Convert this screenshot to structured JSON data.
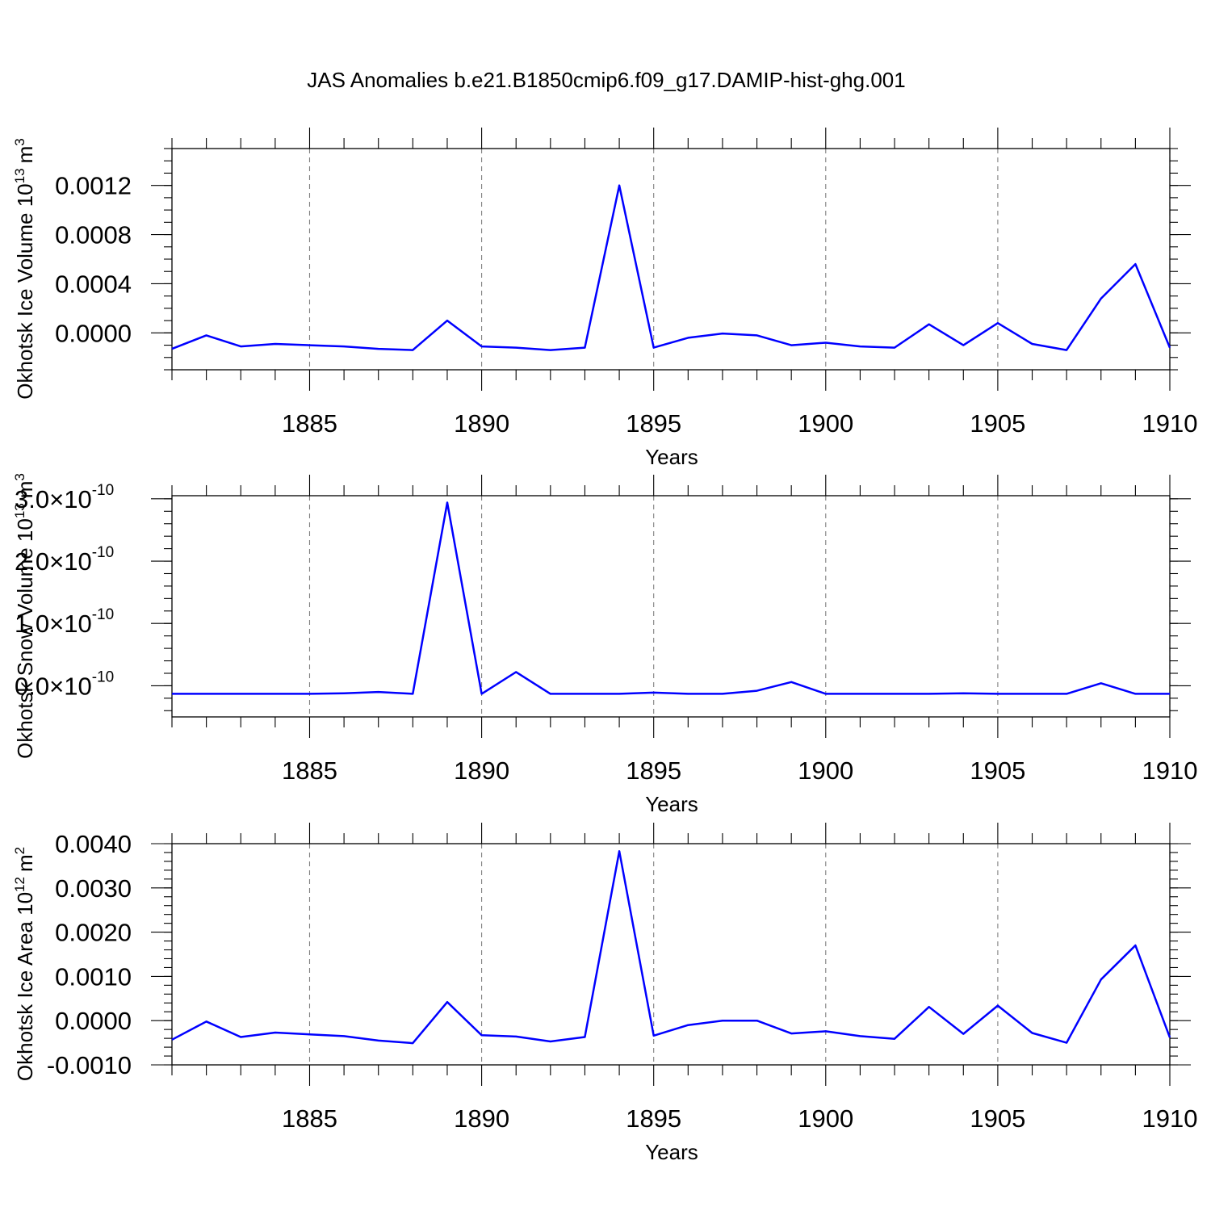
{
  "figure_title": "JAS Anomalies b.e21.B1850cmip6.f09_g17.DAMIP-hist-ghg.001",
  "line_color": "#0000ff",
  "chart_data": [
    {
      "type": "line",
      "xlabel": "Years",
      "ylabel_main": "Okhotsk Ice Volume 10",
      "ylabel_exp": "13",
      "ylabel_unit": "m",
      "ylabel_unit_exp": "3",
      "xlim": [
        1881,
        1910
      ],
      "ylim": [
        -0.0003,
        0.0015
      ],
      "x_ticks": [
        1885,
        1890,
        1895,
        1900,
        1905,
        1910
      ],
      "y_ticks": [
        {
          "value": 0.0,
          "label": "0.0000"
        },
        {
          "value": 0.0004,
          "label": "0.0004"
        },
        {
          "value": 0.0008,
          "label": "0.0008"
        },
        {
          "value": 0.0012,
          "label": "0.0012"
        }
      ],
      "y_minor_step": 0.0001,
      "x": [
        1881,
        1882,
        1883,
        1884,
        1885,
        1886,
        1887,
        1888,
        1889,
        1890,
        1891,
        1892,
        1893,
        1894,
        1895,
        1896,
        1897,
        1898,
        1899,
        1900,
        1901,
        1902,
        1903,
        1904,
        1905,
        1906,
        1907,
        1908,
        1909,
        1910
      ],
      "values": [
        -0.00013,
        -2e-05,
        -0.00011,
        -9e-05,
        -0.0001,
        -0.00011,
        -0.00013,
        -0.00014,
        0.0001,
        -0.00011,
        -0.00012,
        -0.00014,
        -0.00012,
        0.0012,
        -0.00012,
        -4e-05,
        -5e-06,
        -2e-05,
        -0.0001,
        -8e-05,
        -0.00011,
        -0.00012,
        7e-05,
        -0.0001,
        8e-05,
        -9e-05,
        -0.00014,
        0.00028,
        0.00056,
        -0.00012
      ]
    },
    {
      "type": "line",
      "xlabel": "Years",
      "ylabel_main": "Okhotsk Snow Volume 10",
      "ylabel_exp": "13",
      "ylabel_unit": "m",
      "ylabel_unit_exp": "3",
      "xlim": [
        1881,
        1910
      ],
      "ylim": [
        -5e-11,
        3.05e-10
      ],
      "x_ticks": [
        1885,
        1890,
        1895,
        1900,
        1905,
        1910
      ],
      "y_ticks": [
        {
          "value": 0.0,
          "mantissa": "0.0",
          "times": "×",
          "base": "10",
          "exponent": "-10"
        },
        {
          "value": 1e-10,
          "mantissa": "1.0",
          "times": "×",
          "base": "10",
          "exponent": "-10"
        },
        {
          "value": 2e-10,
          "mantissa": "2.0",
          "times": "×",
          "base": "10",
          "exponent": "-10"
        },
        {
          "value": 3e-10,
          "mantissa": "3.0",
          "times": "×",
          "base": "10",
          "exponent": "-10"
        }
      ],
      "y_minor_step": 2e-11,
      "x": [
        1881,
        1882,
        1883,
        1884,
        1885,
        1886,
        1887,
        1888,
        1889,
        1890,
        1891,
        1892,
        1893,
        1894,
        1895,
        1896,
        1897,
        1898,
        1899,
        1900,
        1901,
        1902,
        1903,
        1904,
        1905,
        1906,
        1907,
        1908,
        1909,
        1910
      ],
      "values": [
        -1.3e-11,
        -1.3e-11,
        -1.3e-11,
        -1.3e-11,
        -1.3e-11,
        -1.2e-11,
        -1e-11,
        -1.3e-11,
        2.94e-10,
        -1.3e-11,
        2.2e-11,
        -1.3e-11,
        -1.3e-11,
        -1.3e-11,
        -1.1e-11,
        -1.3e-11,
        -1.3e-11,
        -8e-12,
        6e-12,
        -1.3e-11,
        -1.3e-11,
        -1.3e-11,
        -1.3e-11,
        -1.2e-11,
        -1.3e-11,
        -1.3e-11,
        -1.3e-11,
        4e-12,
        -1.3e-11,
        -1.3e-11
      ]
    },
    {
      "type": "line",
      "xlabel": "Years",
      "ylabel_main": "Okhotsk Ice Area 10",
      "ylabel_exp": "12",
      "ylabel_unit": "m",
      "ylabel_unit_exp": "2",
      "xlim": [
        1881,
        1910
      ],
      "ylim": [
        -0.001,
        0.004
      ],
      "x_ticks": [
        1885,
        1890,
        1895,
        1900,
        1905,
        1910
      ],
      "y_ticks": [
        {
          "value": -0.001,
          "label": "-0.0010"
        },
        {
          "value": 0.0,
          "label": "0.0000"
        },
        {
          "value": 0.001,
          "label": "0.0010"
        },
        {
          "value": 0.002,
          "label": "0.0020"
        },
        {
          "value": 0.003,
          "label": "0.0030"
        },
        {
          "value": 0.004,
          "label": "0.0040"
        }
      ],
      "y_minor_step": 0.0002,
      "x": [
        1881,
        1882,
        1883,
        1884,
        1885,
        1886,
        1887,
        1888,
        1889,
        1890,
        1891,
        1892,
        1893,
        1894,
        1895,
        1896,
        1897,
        1898,
        1899,
        1900,
        1901,
        1902,
        1903,
        1904,
        1905,
        1906,
        1907,
        1908,
        1909,
        1910
      ],
      "values": [
        -0.00043,
        -2e-05,
        -0.00037,
        -0.00027,
        -0.00031,
        -0.00035,
        -0.00045,
        -0.00051,
        0.00042,
        -0.00033,
        -0.00036,
        -0.00047,
        -0.00037,
        0.00383,
        -0.00034,
        -0.0001,
        0.0,
        0.0,
        -0.00029,
        -0.00024,
        -0.00035,
        -0.00041,
        0.00031,
        -0.0003,
        0.00034,
        -0.00028,
        -0.0005,
        0.00093,
        0.0017,
        -0.00038
      ]
    }
  ]
}
